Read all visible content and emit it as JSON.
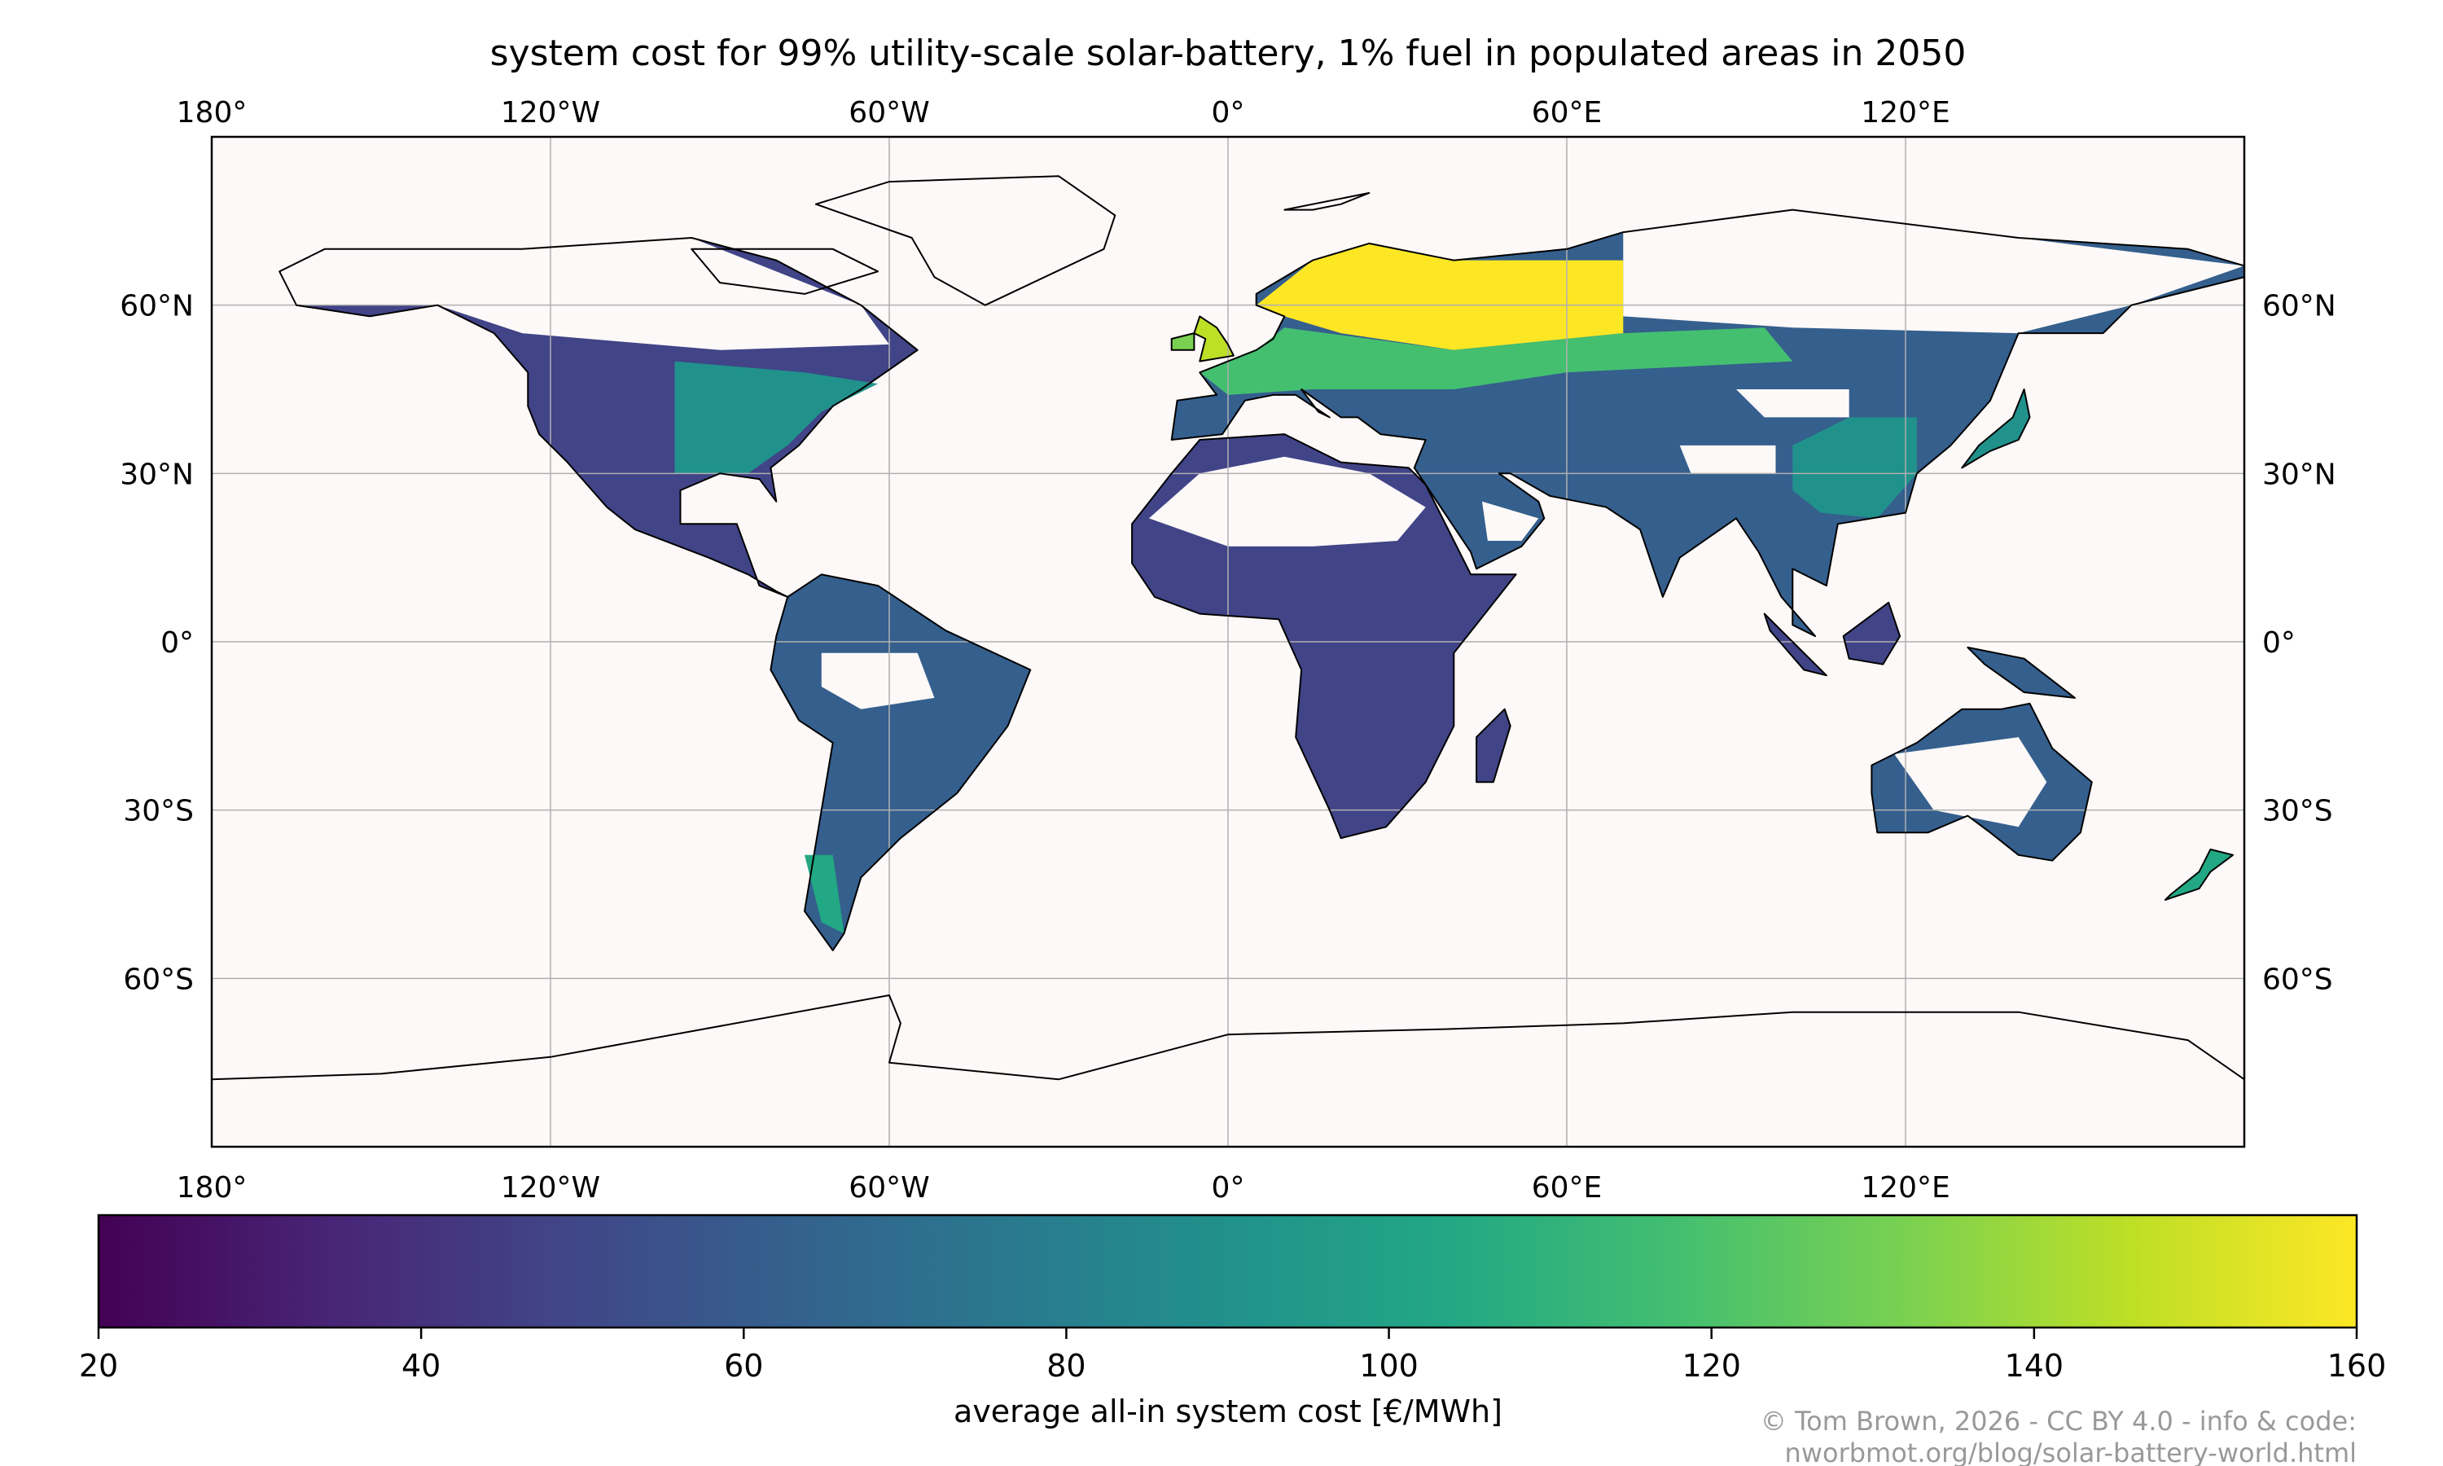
{
  "title": "system cost for 99% utility-scale solar-battery, 1% fuel in populated areas in 2050",
  "credit": {
    "line1": "© Tom Brown, 2026 - CC BY 4.0 - info & code:",
    "line2": "nworbmot.org/blog/solar-battery-world.html"
  },
  "chart_data": {
    "type": "heatmap",
    "title": "system cost for 99% utility-scale solar-battery, 1% fuel in populated areas in 2050",
    "projection": "plate carree",
    "extent": {
      "lon": [
        -180,
        180
      ],
      "lat": [
        -90,
        90
      ]
    },
    "grid": true,
    "lon_ticks": [
      -180,
      -120,
      -60,
      0,
      60,
      120
    ],
    "lon_tick_labels": [
      "180°",
      "120°W",
      "60°W",
      "0°",
      "60°E",
      "120°E"
    ],
    "lat_ticks": [
      60,
      30,
      0,
      -30,
      -60
    ],
    "lat_tick_labels": [
      "60°N",
      "30°N",
      "0°",
      "30°S",
      "60°S"
    ],
    "colorbar": {
      "label": "average all-in system cost [€/MWh]",
      "colormap": "viridis",
      "range": [
        20,
        160
      ],
      "ticks": [
        20,
        40,
        60,
        80,
        100,
        120,
        140,
        160
      ],
      "tick_labels": [
        "20",
        "40",
        "60",
        "80",
        "100",
        "120",
        "140",
        "160"
      ],
      "placement": "bottom"
    },
    "regions": [
      {
        "name": "Africa",
        "approx_cost": 45
      },
      {
        "name": "South America",
        "approx_cost": 55
      },
      {
        "name": "Southern North America / Mexico",
        "approx_cost": 48
      },
      {
        "name": "Eastern US / Canada",
        "approx_cost": 90
      },
      {
        "name": "Middle East / South Asia",
        "approx_cost": 50
      },
      {
        "name": "China",
        "approx_cost": 85
      },
      {
        "name": "Northern Europe / Russia",
        "approx_cost": 160
      },
      {
        "name": "Central Europe",
        "approx_cost": 120
      },
      {
        "name": "Australia",
        "approx_cost": 55
      }
    ],
    "background_color": "#fdf9f8",
    "no_data_color": "#fdf9f8"
  }
}
